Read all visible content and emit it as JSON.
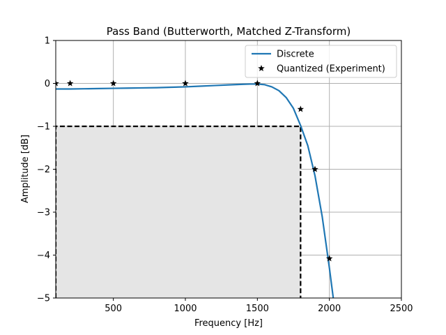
{
  "chart_data": {
    "type": "line",
    "title": "Pass Band (Butterworth, Matched Z-Transform)",
    "xlabel": "Frequency [Hz]",
    "ylabel": "Amplitude [dB]",
    "xlim": [
      100,
      2500
    ],
    "ylim": [
      -5,
      1
    ],
    "xticks": [
      500,
      1000,
      1500,
      2000,
      2500
    ],
    "xtick_labels": [
      "500",
      "1000",
      "1500",
      "2000",
      "2500"
    ],
    "yticks": [
      1,
      0,
      -1,
      -2,
      -3,
      -4,
      -5
    ],
    "ytick_labels": [
      "1",
      "0",
      "−1",
      "−2",
      "−3",
      "−4",
      "−5"
    ],
    "grid": true,
    "legend_position": "top-right",
    "series": [
      {
        "name": "Discrete",
        "kind": "line",
        "color": "#1f77b4",
        "x": [
          100,
          200,
          300,
          400,
          500,
          600,
          700,
          800,
          900,
          1000,
          1100,
          1200,
          1300,
          1400,
          1450,
          1500,
          1550,
          1600,
          1650,
          1700,
          1750,
          1800,
          1850,
          1900,
          1950,
          2000,
          2050
        ],
        "y": [
          -0.13,
          -0.13,
          -0.125,
          -0.12,
          -0.115,
          -0.11,
          -0.105,
          -0.1,
          -0.09,
          -0.08,
          -0.065,
          -0.05,
          -0.035,
          -0.02,
          -0.015,
          -0.015,
          -0.03,
          -0.08,
          -0.17,
          -0.33,
          -0.58,
          -0.98,
          -1.45,
          -2.15,
          -3.1,
          -4.3,
          -5.6
        ]
      },
      {
        "name": "Quantized (Experiment)",
        "kind": "marker",
        "color": "#000000",
        "x": [
          100,
          200,
          500,
          1000,
          1500,
          1800,
          1900,
          2000
        ],
        "y": [
          0,
          0,
          0,
          0,
          0,
          -0.6,
          -2.0,
          -4.08
        ]
      }
    ],
    "annotations": [
      {
        "kind": "shaded-box",
        "x": [
          100,
          1800
        ],
        "y": [
          -5,
          -1
        ],
        "fill": "#e5e5e5",
        "edge": "#000000",
        "linestyle": "dashed"
      }
    ]
  }
}
